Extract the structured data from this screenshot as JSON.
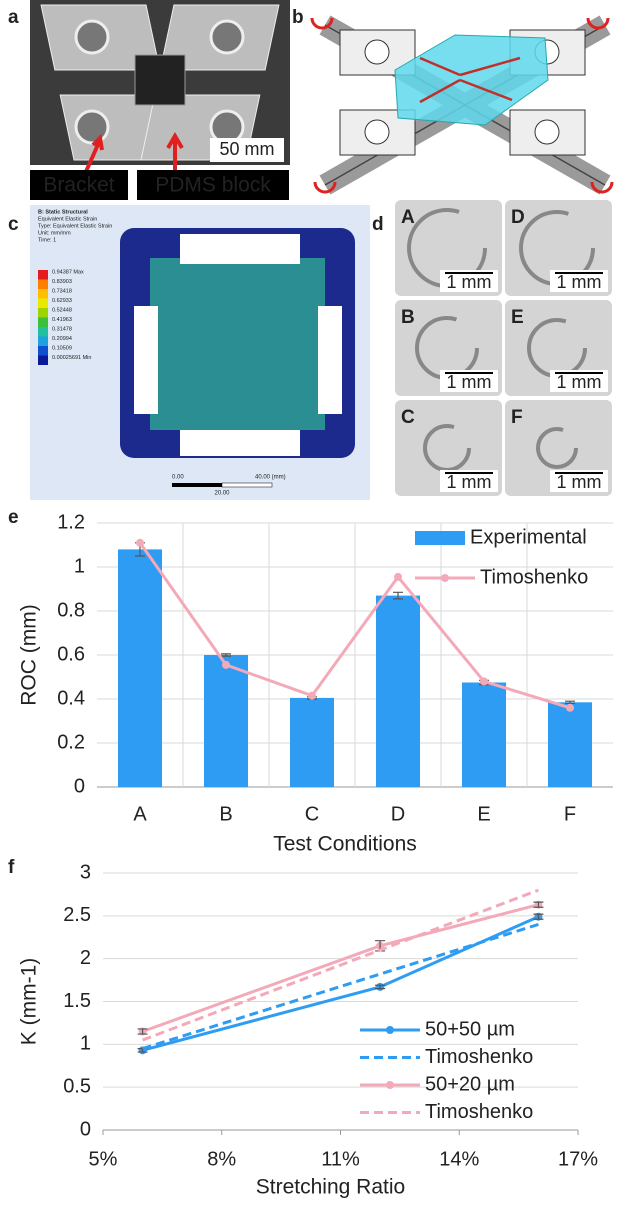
{
  "panels": {
    "a": {
      "letter": "a",
      "labels": [
        "Bracket",
        "PDMS block"
      ],
      "scale": "50 mm"
    },
    "b": {
      "letter": "b"
    },
    "c": {
      "letter": "c",
      "legend_title": [
        "B: Static Structural",
        "Equivalent Elastic Strain",
        "Type: Equivalent Elastic Strain",
        "Unit: mm/mm",
        "Time: 1"
      ],
      "legend_values": [
        "0.94387 Max",
        "0.83903",
        "0.73418",
        "0.62933",
        "0.52448",
        "0.41963",
        "0.31478",
        "0.20994",
        "0.10509",
        "0.00025691 Min"
      ],
      "scale": [
        "0.00",
        "40.00 (mm)",
        "20.00"
      ]
    },
    "d": {
      "letter": "d",
      "images": [
        {
          "label": "A",
          "scale": "1 mm"
        },
        {
          "label": "D",
          "scale": "1 mm"
        },
        {
          "label": "B",
          "scale": "1 mm"
        },
        {
          "label": "E",
          "scale": "1 mm"
        },
        {
          "label": "C",
          "scale": "1 mm"
        },
        {
          "label": "F",
          "scale": "1 mm"
        }
      ]
    }
  },
  "chart_data": [
    {
      "type": "bar",
      "label": "e",
      "y_label": "ROC (mm)",
      "x_label": "Test Conditions",
      "categories": [
        "A",
        "B",
        "C",
        "D",
        "E",
        "F"
      ],
      "series": [
        {
          "name": "Experimental",
          "type": "bar",
          "color": "#2e9cf2",
          "values": [
            1.08,
            0.6,
            0.405,
            0.87,
            0.475,
            0.385
          ],
          "errors": [
            0.03,
            0.005,
            0.005,
            0.015,
            0.01,
            0.005
          ]
        },
        {
          "name": "Timoshenko",
          "type": "line",
          "color": "#f4a9b8",
          "values": [
            1.11,
            0.555,
            0.415,
            0.955,
            0.48,
            0.36
          ]
        }
      ],
      "ylim": [
        0,
        1.2
      ],
      "yticks": [
        0,
        0.2,
        0.4,
        0.6,
        0.8,
        1,
        1.2
      ],
      "grid": true,
      "legend": "top-right"
    },
    {
      "type": "line",
      "label": "f",
      "y_label": "K (mm-1)",
      "x_label": "Stretching Ratio",
      "x": [
        6,
        12,
        16
      ],
      "series": [
        {
          "name": "50+50 µm",
          "color": "#2e9cf2",
          "markers": true,
          "dashed": false,
          "values": [
            0.93,
            1.67,
            2.49
          ],
          "errors": [
            0.02,
            0.02,
            0.03
          ]
        },
        {
          "name": "Timoshenko",
          "color": "#2e9cf2",
          "markers": false,
          "dashed": true,
          "values": [
            0.95,
            1.82,
            2.4
          ]
        },
        {
          "name": "50+20 µm",
          "color": "#f4a9b8",
          "markers": true,
          "dashed": false,
          "values": [
            1.15,
            2.15,
            2.63
          ],
          "errors": [
            0.03,
            0.06,
            0.03
          ]
        },
        {
          "name": "Timoshenko",
          "color": "#f4a9b8",
          "markers": false,
          "dashed": true,
          "values": [
            1.05,
            2.1,
            2.8
          ]
        }
      ],
      "xlim": [
        5,
        17
      ],
      "xticks": [
        {
          "value": 5,
          "label": "5%"
        },
        {
          "value": 8,
          "label": "8%"
        },
        {
          "value": 11,
          "label": "11%"
        },
        {
          "value": 14,
          "label": "14%"
        },
        {
          "value": 17,
          "label": "17%"
        }
      ],
      "ylim": [
        0,
        3
      ],
      "yticks": [
        0,
        0.5,
        1,
        1.5,
        2,
        2.5,
        3
      ],
      "grid": true,
      "legend": "bottom-right"
    }
  ]
}
